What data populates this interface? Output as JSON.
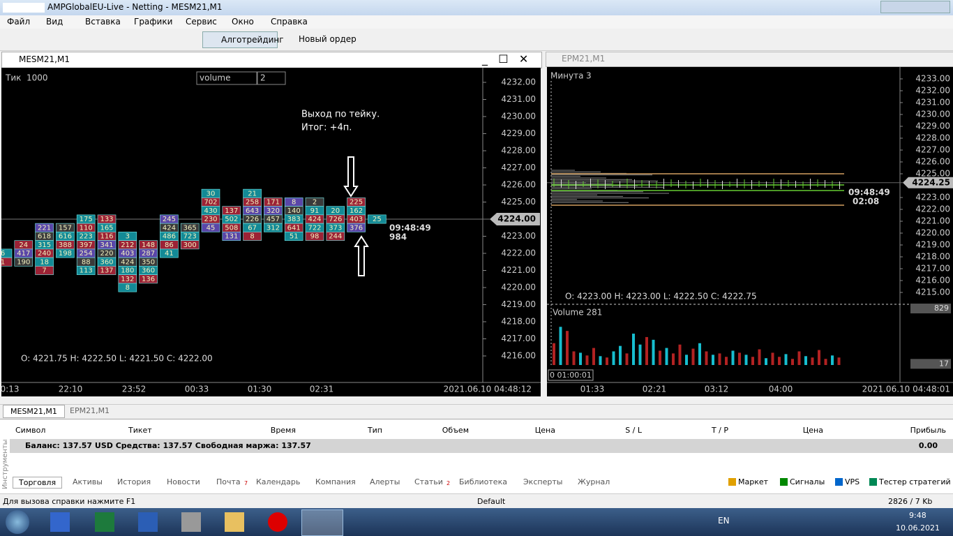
{
  "window": {
    "title": "AMPGlobalEU-Live - Netting - MESM21,M1"
  },
  "menu": [
    "Файл",
    "Вид",
    "Вставка",
    "Графики",
    "Сервис",
    "Окно",
    "Справка"
  ],
  "toolbar": {
    "algo": "Алготрейдинг",
    "new_order": "Новый ордер"
  },
  "chart_left": {
    "title": "MESM21,M1",
    "timeframe": "Тик",
    "period": "1000",
    "indicator": "volume",
    "param": "2",
    "annotation": [
      "Выход по тейку.",
      "Итог: +4п."
    ],
    "price_ticks": [
      {
        "value": 4232,
        "label": "4232.00"
      },
      {
        "value": 4231,
        "label": "4231.00"
      },
      {
        "value": 4230,
        "label": "4230.00"
      },
      {
        "value": 4229,
        "label": "4229.00"
      },
      {
        "value": 4228,
        "label": "4228.00"
      },
      {
        "value": 4227,
        "label": "4227.00"
      },
      {
        "value": 4226,
        "label": "4226.00"
      },
      {
        "value": 4225,
        "label": "4225.00"
      },
      {
        "value": 4223,
        "label": "4223.00"
      },
      {
        "value": 4222,
        "label": "4222.00"
      },
      {
        "value": 4221,
        "label": "4221.00"
      },
      {
        "value": 4220,
        "label": "4220.00"
      },
      {
        "value": 4219,
        "label": "4219.00"
      },
      {
        "value": 4218,
        "label": "4218.00"
      },
      {
        "value": 4217,
        "label": "4217.00"
      },
      {
        "value": 4216,
        "label": "4216.00"
      }
    ],
    "current_price": {
      "value": 4224,
      "label": "4224.00"
    },
    "ohlc": "O: 4221.75  H: 4222.50  L: 4221.50  C: 4222.00",
    "timer": [
      "09:48:49",
      "984"
    ],
    "time_labels": [
      "0:13",
      "22:10",
      "23:52",
      "00:33",
      "01:30",
      "02:31"
    ],
    "date": "2021.06.10 04:48:12",
    "footprint": [
      {
        "top": 4222,
        "cells": [
          6,
          1
        ]
      },
      {
        "top": 4222.5,
        "cells": [
          24,
          417,
          190
        ]
      },
      {
        "top": 4223.5,
        "cells": [
          221,
          618,
          315,
          240,
          18,
          7
        ]
      },
      {
        "top": 4223.5,
        "cells": [
          157,
          616,
          388,
          198
        ]
      },
      {
        "top": 4224,
        "cells": [
          175,
          110,
          223,
          397,
          254,
          88,
          113
        ]
      },
      {
        "top": 4224,
        "cells": [
          133,
          165,
          116,
          341,
          220,
          360,
          137
        ]
      },
      {
        "top": 4223,
        "cells": [
          3,
          212,
          403,
          424,
          180,
          132,
          8
        ]
      },
      {
        "top": 4222.5,
        "cells": [
          148,
          287,
          350,
          360,
          136
        ]
      },
      {
        "top": 4224,
        "cells": [
          245,
          424,
          486,
          86,
          41
        ]
      },
      {
        "top": 4223.5,
        "cells": [
          365,
          723,
          300
        ]
      },
      {
        "top": 4225.5,
        "cells": [
          30,
          702,
          430,
          230,
          45
        ]
      },
      {
        "top": 4224.5,
        "cells": [
          137,
          502,
          508,
          131
        ]
      },
      {
        "top": 4225.5,
        "cells": [
          21,
          258,
          643,
          226,
          67,
          8
        ]
      },
      {
        "top": 4225,
        "cells": [
          171,
          320,
          457,
          312
        ]
      },
      {
        "top": 4225,
        "cells": [
          8,
          140,
          383,
          641,
          51
        ]
      },
      {
        "top": 4225,
        "cells": [
          2,
          91,
          424,
          722,
          98
        ]
      },
      {
        "top": 4224.5,
        "cells": [
          20,
          726,
          373,
          244
        ]
      },
      {
        "top": 4225,
        "cells": [
          225,
          162,
          403,
          376
        ]
      },
      {
        "top": 4224,
        "cells": [
          25
        ]
      }
    ]
  },
  "chart_right": {
    "title": "EPM21,M1",
    "timeframe": "Минута",
    "period": "3",
    "price_ticks": [
      {
        "value": 4233,
        "label": "4233.00"
      },
      {
        "value": 4232,
        "label": "4232.00"
      },
      {
        "value": 4231,
        "label": "4231.00"
      },
      {
        "value": 4230,
        "label": "4230.00"
      },
      {
        "value": 4229,
        "label": "4229.00"
      },
      {
        "value": 4228,
        "label": "4228.00"
      },
      {
        "value": 4227,
        "label": "4227.00"
      },
      {
        "value": 4226,
        "label": "4226.00"
      },
      {
        "value": 4225,
        "label": "4225.00"
      },
      {
        "value": 4223,
        "label": "4223.00"
      },
      {
        "value": 4222,
        "label": "4222.00"
      },
      {
        "value": 4221,
        "label": "4221.00"
      },
      {
        "value": 4220,
        "label": "4220.00"
      },
      {
        "value": 4219,
        "label": "4219.00"
      },
      {
        "value": 4218,
        "label": "4218.00"
      },
      {
        "value": 4217,
        "label": "4217.00"
      },
      {
        "value": 4216,
        "label": "4216.00"
      },
      {
        "value": 4215,
        "label": "4215.00"
      }
    ],
    "current_price": {
      "value": 4224.25,
      "label": "4224.25"
    },
    "timer": [
      "09:48:49",
      "02:08"
    ],
    "ohlc": "O: 4223.00  H: 4223.00  L: 4222.50  C: 4222.75",
    "volume_label": "Volume 281",
    "volume_ticks": [
      829,
      17
    ],
    "volume_values": [
      320,
      560,
      500,
      200,
      180,
      140,
      250,
      130,
      110,
      200,
      280,
      170,
      460,
      300,
      410,
      370,
      210,
      250,
      170,
      300,
      150,
      240,
      320,
      200,
      150,
      170,
      120,
      210,
      180,
      150,
      120,
      230,
      100,
      180,
      120,
      160,
      90,
      200,
      130,
      110,
      220,
      90,
      140,
      110
    ],
    "volume_colors": [
      "#b22222",
      "#17becf",
      "#b22222",
      "#b22222",
      "#17becf",
      "#b22222",
      "#b22222",
      "#17becf",
      "#b22222",
      "#17becf",
      "#17becf",
      "#b22222",
      "#17becf",
      "#17becf",
      "#b22222",
      "#17becf",
      "#b22222",
      "#17becf",
      "#b22222",
      "#b22222",
      "#17becf",
      "#b22222",
      "#17becf",
      "#b22222",
      "#17becf",
      "#b22222",
      "#b22222",
      "#17becf",
      "#b22222",
      "#17becf",
      "#b22222",
      "#b22222",
      "#17becf",
      "#b22222",
      "#b22222",
      "#17becf",
      "#b22222",
      "#b22222",
      "#17becf",
      "#b22222",
      "#b22222",
      "#b22222",
      "#17becf",
      "#b22222"
    ],
    "timer_box": "0 01:00:01",
    "time_labels": [
      "01:33",
      "02:21",
      "03:12",
      "04:00"
    ],
    "date": "2021.06.10 04:48:01"
  },
  "chart_tabs": [
    "MESM21,M1",
    "EPM21,M1"
  ],
  "toolbox": {
    "side": "Инструменты",
    "headers": [
      "Символ",
      "Тикет",
      "Время",
      "Тип",
      "Объем",
      "Цена",
      "S / L",
      "T / P",
      "Цена",
      "Прибыль"
    ],
    "balance": "Баланс: 137.57 USD  Средства: 137.57  Свободная маржа: 137.57",
    "profit": "0.00",
    "tabs": [
      "Торговля",
      "Активы",
      "История",
      "Новости",
      "Почта",
      "Календарь",
      "Компания",
      "Алерты",
      "Статьи",
      "Библиотека",
      "Эксперты",
      "Журнал"
    ],
    "badges": {
      "mail": "7",
      "articles": "2"
    },
    "right_tabs": [
      "Маркет",
      "Сигналы",
      "VPS",
      "Тестер стратегий"
    ]
  },
  "status": {
    "help": "Для вызова справки нажмите F1",
    "profile": "Default",
    "traffic": "2826 / 7 Kb"
  },
  "taskbar": {
    "lang": "EN",
    "time": "9:48",
    "date": "10.06.2021"
  }
}
